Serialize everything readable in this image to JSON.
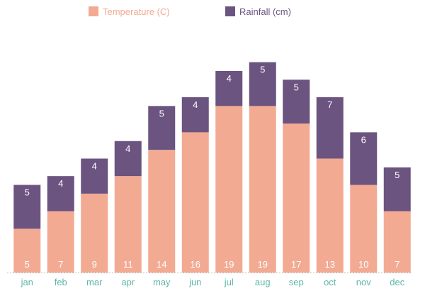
{
  "chart_data": {
    "type": "bar",
    "stacked": true,
    "title": "",
    "xlabel": "",
    "ylabel": "",
    "ylim": [
      0,
      25
    ],
    "grid": false,
    "legend_position": "top",
    "categories": [
      "jan",
      "feb",
      "mar",
      "apr",
      "may",
      "jun",
      "jul",
      "aug",
      "sep",
      "oct",
      "nov",
      "dec"
    ],
    "series": [
      {
        "name": "Temperature (C)",
        "color": "#f2aa93",
        "values": [
          5,
          7,
          9,
          11,
          14,
          16,
          19,
          19,
          17,
          13,
          10,
          7
        ]
      },
      {
        "name": "Rainfall (cm)",
        "color": "#6b5480",
        "values": [
          5,
          4,
          4,
          4,
          5,
          4,
          4,
          5,
          5,
          7,
          6,
          5
        ]
      }
    ],
    "legend_text_colors": [
      "#f2aa93",
      "#6b5480"
    ],
    "tick_label_color": "#5bb8a7",
    "axis_color": "#bbbbbb"
  }
}
